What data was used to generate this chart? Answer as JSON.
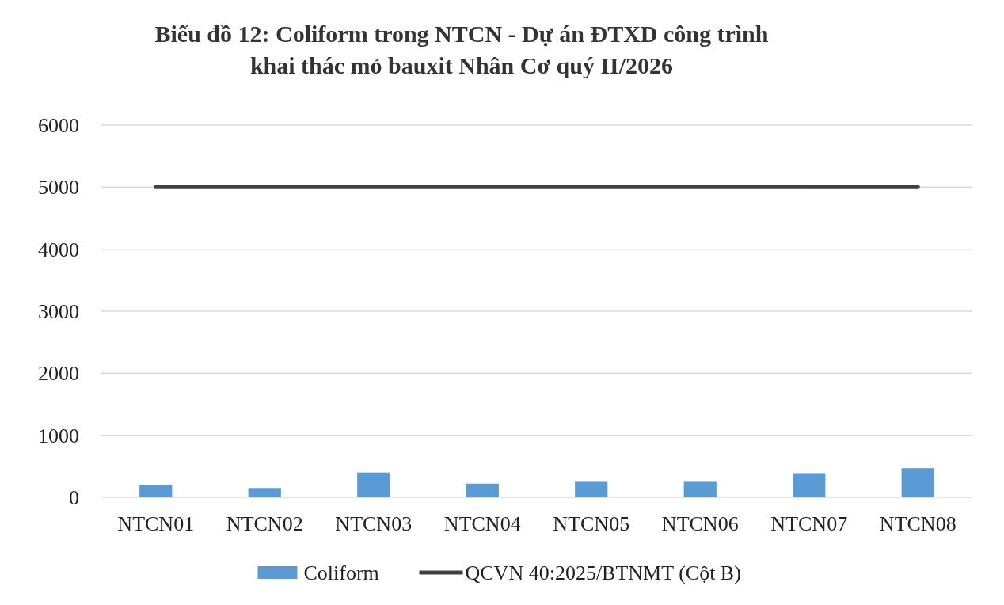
{
  "chart_data": {
    "type": "bar",
    "title": "Biểu đồ 12: Coliform trong NTCN - Dự án ĐTXD công trình\nkhai thác mỏ bauxit Nhân Cơ quý II/2026",
    "categories": [
      "NTCN01",
      "NTCN02",
      "NTCN03",
      "NTCN04",
      "NTCN05",
      "NTCN06",
      "NTCN07",
      "NTCN08"
    ],
    "series": [
      {
        "name": "Coliform",
        "color": "#5b9bd5",
        "values": [
          200,
          150,
          400,
          220,
          250,
          250,
          390,
          470
        ]
      },
      {
        "name": "QCVN 40:2025/BTNMT  (Cột B)",
        "type": "line",
        "color": "#404040",
        "values": [
          5000,
          5000,
          5000,
          5000,
          5000,
          5000,
          5000,
          5000
        ]
      }
    ],
    "ylim": [
      0,
      6000
    ],
    "yticks": [
      0,
      1000,
      2000,
      3000,
      4000,
      5000,
      6000
    ],
    "grid": "y",
    "legend": "bottom"
  }
}
